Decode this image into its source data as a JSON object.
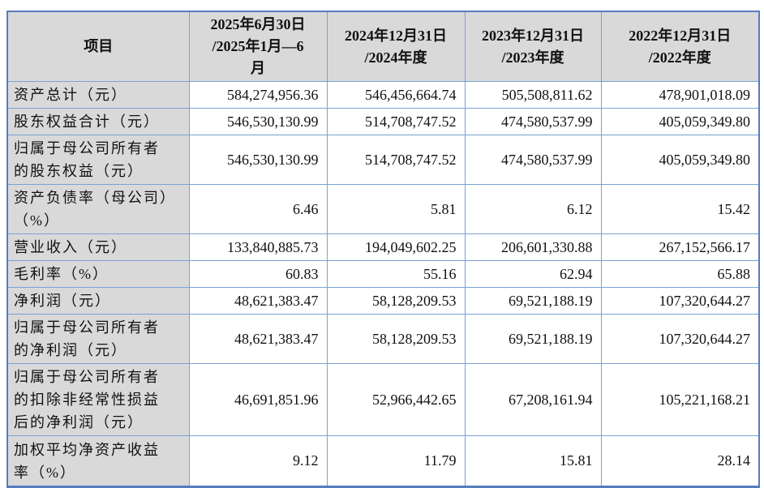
{
  "table": {
    "title": "financial-summary-table",
    "header_fill": "#d9d9d9",
    "border_color": "#7aa1d4",
    "outer_border_color": "#567dbe",
    "columns": [
      "项目",
      "2025年6月30日\n/2025年1月—6\n月",
      "2024年12月31日\n/2024年度",
      "2023年12月31日\n/2023年度",
      "2022年12月31日\n/2022年度"
    ],
    "rows": [
      {
        "label": "资产总计（元）",
        "values": [
          "584,274,956.36",
          "546,456,664.74",
          "505,508,811.62",
          "478,901,018.09"
        ]
      },
      {
        "label": "股东权益合计（元）",
        "values": [
          "546,530,130.99",
          "514,708,747.52",
          "474,580,537.99",
          "405,059,349.80"
        ]
      },
      {
        "label": "归属于母公司所有者\n的股东权益（元）",
        "values": [
          "546,530,130.99",
          "514,708,747.52",
          "474,580,537.99",
          "405,059,349.80"
        ]
      },
      {
        "label": "资产负债率（母公司）\n（%）",
        "values": [
          "6.46",
          "5.81",
          "6.12",
          "15.42"
        ]
      },
      {
        "label": "营业收入（元）",
        "values": [
          "133,840,885.73",
          "194,049,602.25",
          "206,601,330.88",
          "267,152,566.17"
        ]
      },
      {
        "label": "毛利率（%）",
        "values": [
          "60.83",
          "55.16",
          "62.94",
          "65.88"
        ]
      },
      {
        "label": "净利润（元）",
        "values": [
          "48,621,383.47",
          "58,128,209.53",
          "69,521,188.19",
          "107,320,644.27"
        ]
      },
      {
        "label": "归属于母公司所有者\n的净利润（元）",
        "values": [
          "48,621,383.47",
          "58,128,209.53",
          "69,521,188.19",
          "107,320,644.27"
        ]
      },
      {
        "label": "归属于母公司所有者\n的扣除非经常性损益\n后的净利润（元）",
        "values": [
          "46,691,851.96",
          "52,966,442.65",
          "67,208,161.94",
          "105,221,168.21"
        ]
      },
      {
        "label": "加权平均净资产收益\n率（%）",
        "values": [
          "9.12",
          "11.79",
          "15.81",
          "28.14"
        ]
      }
    ]
  }
}
